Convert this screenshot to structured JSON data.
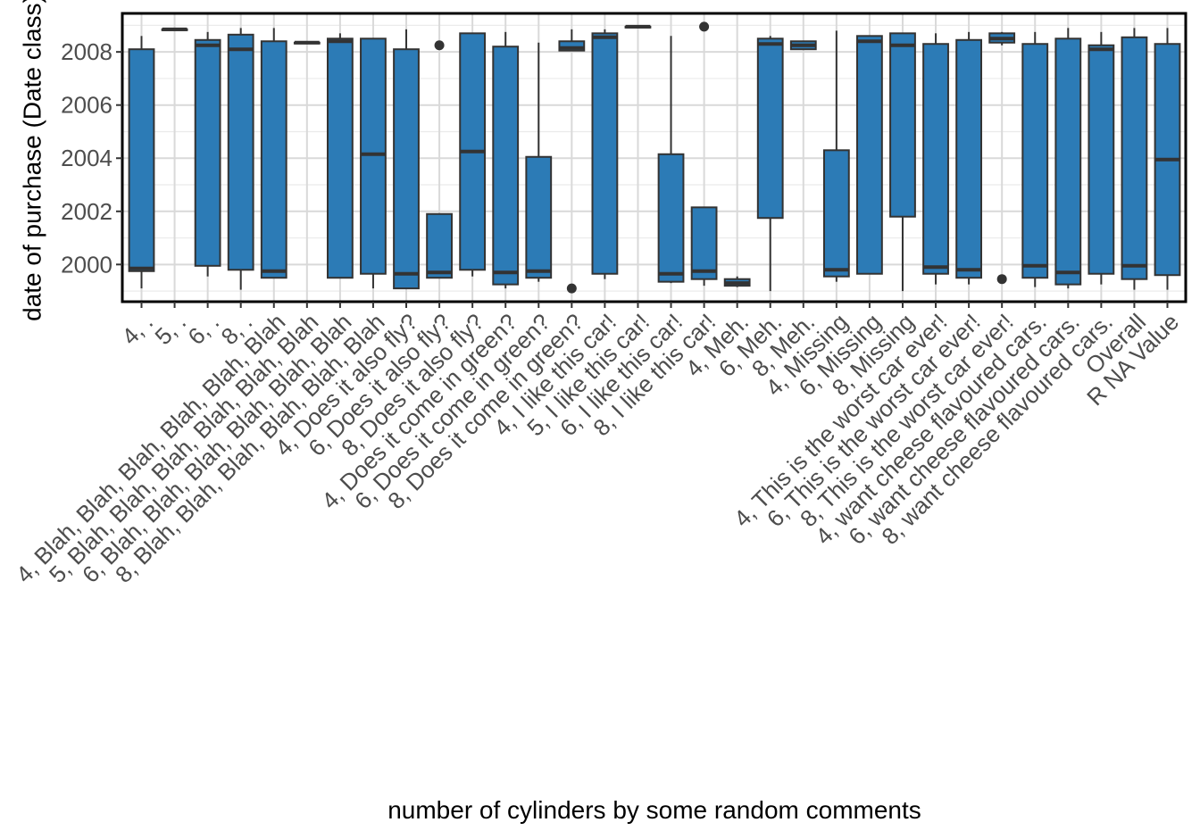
{
  "chart_data": {
    "type": "box",
    "xlabel": "number of cylinders by some random comments",
    "ylabel": "date of purchase (Date class)",
    "ylim": [
      1998.6,
      2009.45
    ],
    "yticks": [
      2000,
      2002,
      2004,
      2006,
      2008
    ],
    "grid": true,
    "box_color": "#2c7bb6",
    "categories": [
      "4, .",
      "5, .",
      "6, .",
      "8, .",
      "4, Blah, Blah, Blah, Blah, Blah, Blah",
      "5, Blah, Blah, Blah, Blah, Blah, Blah",
      "6, Blah, Blah, Blah, Blah, Blah, Blah",
      "8, Blah, Blah, Blah, Blah, Blah, Blah",
      "4, Does it also fly?",
      "6, Does it also fly?",
      "8, Does it also fly?",
      "4, Does it come in green?",
      "6, Does it come in green?",
      "8, Does it come in green?",
      "4, I like this car!",
      "5, I like this car!",
      "6, I like this car!",
      "8, I like this car!",
      "4, Meh.",
      "6, Meh.",
      "8, Meh.",
      "4, Missing",
      "6, Missing",
      "8, Missing",
      "4, This is the worst car ever!",
      "6, This is the worst car ever!",
      "8, This is the worst car ever!",
      "4, want cheese flavoured cars.",
      "6, want cheese flavoured cars.",
      "8, want cheese flavoured cars.",
      "Overall",
      "R NA Value"
    ],
    "boxes": [
      {
        "min": 1999.1,
        "q1": 1999.75,
        "median": 1999.85,
        "q3": 2008.1,
        "max": 2008.6,
        "outliers": []
      },
      {
        "min": 2008.85,
        "q1": 2008.85,
        "median": 2008.85,
        "q3": 2008.85,
        "max": 2008.85,
        "outliers": []
      },
      {
        "min": 1999.55,
        "q1": 1999.95,
        "median": 2008.25,
        "q3": 2008.45,
        "max": 2008.75,
        "outliers": []
      },
      {
        "min": 1999.05,
        "q1": 1999.8,
        "median": 2008.1,
        "q3": 2008.65,
        "max": 2008.9,
        "outliers": []
      },
      {
        "min": 1999.5,
        "q1": 1999.5,
        "median": 1999.75,
        "q3": 2008.4,
        "max": 2008.9,
        "outliers": []
      },
      {
        "min": 2008.35,
        "q1": 2008.35,
        "median": 2008.35,
        "q3": 2008.35,
        "max": 2008.35,
        "outliers": []
      },
      {
        "min": 1999.5,
        "q1": 1999.5,
        "median": 2008.4,
        "q3": 2008.5,
        "max": 2008.7,
        "outliers": []
      },
      {
        "min": 1999.1,
        "q1": 1999.65,
        "median": 2004.15,
        "q3": 2008.5,
        "max": 2008.5,
        "outliers": []
      },
      {
        "min": 1999.1,
        "q1": 1999.1,
        "median": 1999.65,
        "q3": 2008.1,
        "max": 2008.85,
        "outliers": []
      },
      {
        "min": 1999.5,
        "q1": 1999.5,
        "median": 1999.7,
        "q3": 2001.9,
        "max": 2001.9,
        "outliers": [
          2008.25
        ]
      },
      {
        "min": 1999.55,
        "q1": 1999.8,
        "median": 2004.25,
        "q3": 2008.7,
        "max": 2008.7,
        "outliers": []
      },
      {
        "min": 1999.1,
        "q1": 1999.25,
        "median": 1999.7,
        "q3": 2008.2,
        "max": 2008.75,
        "outliers": []
      },
      {
        "min": 1999.35,
        "q1": 1999.5,
        "median": 1999.75,
        "q3": 2004.05,
        "max": 2008.35,
        "outliers": []
      },
      {
        "min": 2008.05,
        "q1": 2008.05,
        "median": 2008.15,
        "q3": 2008.4,
        "max": 2008.85,
        "outliers": [
          1999.1
        ]
      },
      {
        "min": 1999.45,
        "q1": 1999.65,
        "median": 2008.55,
        "q3": 2008.7,
        "max": 2008.85,
        "outliers": []
      },
      {
        "min": 2008.95,
        "q1": 2008.95,
        "median": 2008.95,
        "q3": 2008.95,
        "max": 2008.95,
        "outliers": []
      },
      {
        "min": 1999.3,
        "q1": 1999.35,
        "median": 1999.65,
        "q3": 2004.15,
        "max": 2008.6,
        "outliers": []
      },
      {
        "min": 1999.2,
        "q1": 1999.45,
        "median": 1999.75,
        "q3": 2002.15,
        "max": 2002.15,
        "outliers": [
          2008.95
        ]
      },
      {
        "min": 1999.15,
        "q1": 1999.2,
        "median": 1999.3,
        "q3": 1999.45,
        "max": 1999.55,
        "outliers": []
      },
      {
        "min": 1999.0,
        "q1": 2001.75,
        "median": 2008.3,
        "q3": 2008.5,
        "max": 2008.6,
        "outliers": []
      },
      {
        "min": 2008.1,
        "q1": 2008.1,
        "median": 2008.25,
        "q3": 2008.4,
        "max": 2008.4,
        "outliers": []
      },
      {
        "min": 1999.35,
        "q1": 1999.55,
        "median": 1999.8,
        "q3": 2004.3,
        "max": 2008.8,
        "outliers": []
      },
      {
        "min": 1999.65,
        "q1": 1999.65,
        "median": 2008.4,
        "q3": 2008.6,
        "max": 2008.6,
        "outliers": []
      },
      {
        "min": 1999.0,
        "q1": 2001.8,
        "median": 2008.25,
        "q3": 2008.7,
        "max": 2008.7,
        "outliers": []
      },
      {
        "min": 1999.25,
        "q1": 1999.65,
        "median": 1999.9,
        "q3": 2008.3,
        "max": 2008.7,
        "outliers": []
      },
      {
        "min": 1999.25,
        "q1": 1999.5,
        "median": 1999.8,
        "q3": 2008.45,
        "max": 2008.75,
        "outliers": []
      },
      {
        "min": 2008.25,
        "q1": 2008.35,
        "median": 2008.5,
        "q3": 2008.7,
        "max": 2008.75,
        "outliers": [
          1999.45
        ]
      },
      {
        "min": 1999.15,
        "q1": 1999.5,
        "median": 1999.95,
        "q3": 2008.3,
        "max": 2008.75,
        "outliers": []
      },
      {
        "min": 1999.1,
        "q1": 1999.25,
        "median": 1999.7,
        "q3": 2008.5,
        "max": 2008.9,
        "outliers": []
      },
      {
        "min": 1999.25,
        "q1": 1999.65,
        "median": 2008.1,
        "q3": 2008.25,
        "max": 2008.75,
        "outliers": []
      },
      {
        "min": 1999.05,
        "q1": 1999.45,
        "median": 1999.95,
        "q3": 2008.55,
        "max": 2008.9,
        "outliers": []
      },
      {
        "min": 1999.05,
        "q1": 1999.6,
        "median": 2003.95,
        "q3": 2008.3,
        "max": 2008.9,
        "outliers": []
      }
    ]
  }
}
